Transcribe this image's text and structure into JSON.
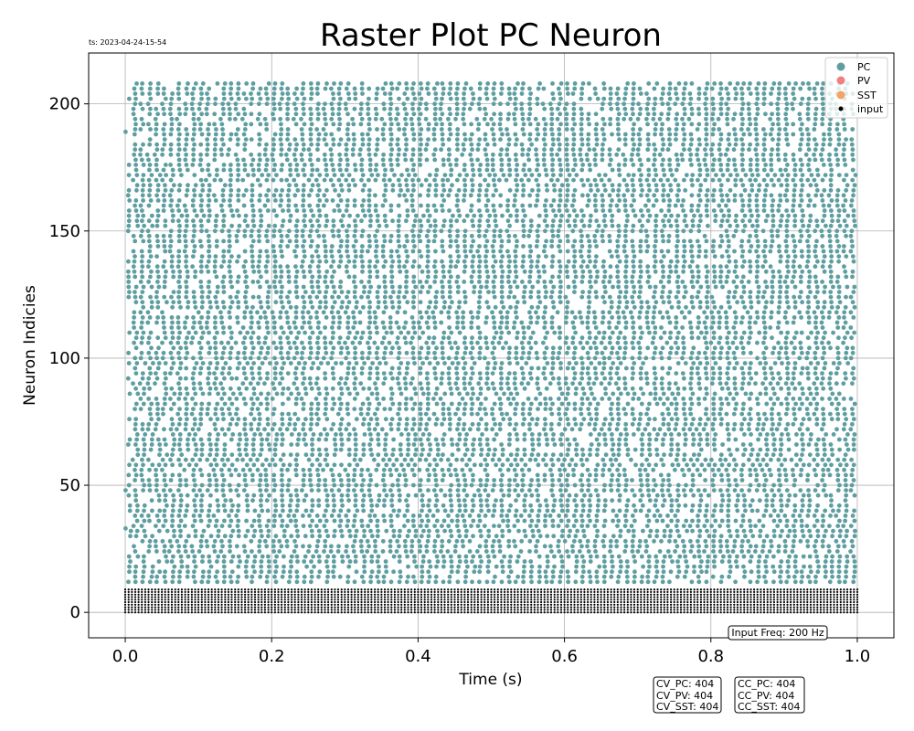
{
  "timestamp": "ts: 2023-04-24-15-54",
  "chart_data": {
    "type": "scatter",
    "title": "Raster Plot PC Neuron",
    "xlabel": "Time (s)",
    "ylabel": "Neuron Indicies",
    "xlim": [
      -0.05,
      1.05
    ],
    "ylim": [
      -10,
      220
    ],
    "xticks": [
      0.0,
      0.2,
      0.4,
      0.6,
      0.8,
      1.0
    ],
    "xtick_labels": [
      "0.0",
      "0.2",
      "0.4",
      "0.6",
      "0.8",
      "1.0"
    ],
    "yticks": [
      0,
      50,
      100,
      150,
      200
    ],
    "ytick_labels": [
      "0",
      "50",
      "100",
      "150",
      "200"
    ],
    "grid": true,
    "legend_position": "top-right",
    "series": [
      {
        "name": "PC",
        "color": "#5f9ea0",
        "marker_size": 5,
        "neuron_index_range": [
          10,
          209
        ],
        "time_range": [
          0.0,
          1.0
        ],
        "pattern": "dense periodic spiking columns"
      },
      {
        "name": "PV",
        "color": "#f08080",
        "marker_size": 5
      },
      {
        "name": "SST",
        "color": "#f4a460",
        "marker_size": 5
      },
      {
        "name": "input",
        "color": "#000000",
        "marker_size": 2,
        "neuron_index_range": [
          0,
          9
        ],
        "time_range": [
          0.0,
          1.0
        ],
        "rate_hz": 200
      }
    ],
    "annotations": {
      "input_freq": "Input Freq: 200 Hz",
      "cv_lines": [
        "CV_PC: 404",
        "CV_PV: 404",
        "CV_SST: 404"
      ],
      "cc_lines": [
        "CC_PC: 404",
        "CC_PV: 404",
        "CC_SST: 404"
      ]
    }
  }
}
